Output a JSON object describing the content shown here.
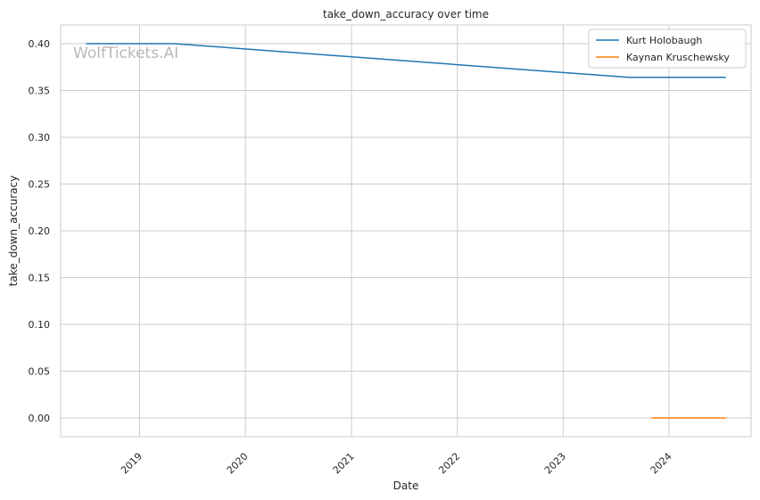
{
  "chart_data": {
    "type": "line",
    "title": "take_down_accuracy over time",
    "xlabel": "Date",
    "ylabel": "take_down_accuracy",
    "watermark": "WolfTickets.AI",
    "x_ticks": [
      "2019",
      "2020",
      "2021",
      "2022",
      "2023",
      "2024"
    ],
    "y_ticks": [
      "0.00",
      "0.05",
      "0.10",
      "0.15",
      "0.20",
      "0.25",
      "0.30",
      "0.35",
      "0.40"
    ],
    "ylim": [
      -0.02,
      0.42
    ],
    "xlim": [
      "2018-04-04",
      "2024-10-10"
    ],
    "grid": true,
    "legend_position": "top-right",
    "series": [
      {
        "name": "Kurt Holobaugh",
        "color": "#1f77b4",
        "points": [
          {
            "x": "2018-07-01",
            "y": 0.4
          },
          {
            "x": "2019-05-01",
            "y": 0.4
          },
          {
            "x": "2023-08-15",
            "y": 0.364
          },
          {
            "x": "2024-07-15",
            "y": 0.364
          }
        ]
      },
      {
        "name": "Kaynan Kruschewsky",
        "color": "#ff7f0e",
        "points": [
          {
            "x": "2023-11-01",
            "y": 0.0
          },
          {
            "x": "2024-07-15",
            "y": 0.0
          }
        ]
      }
    ]
  }
}
